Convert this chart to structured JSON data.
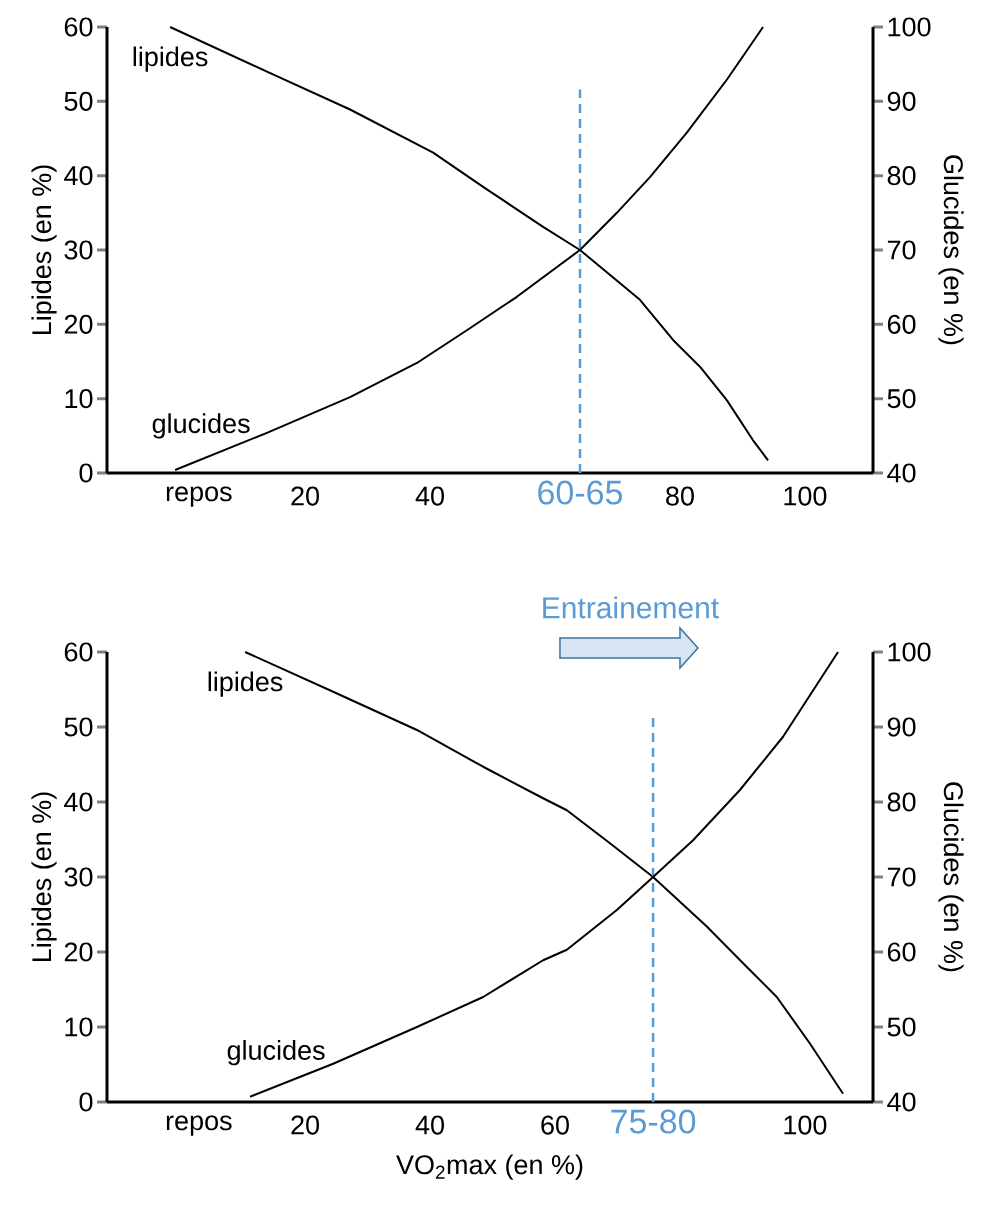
{
  "chart_data": [
    {
      "type": "line",
      "ylabel": "Lipides (en %)",
      "y2label": "Glucides (en %)",
      "xlim": [
        -11.7,
        110.9
      ],
      "xticks": [
        {
          "value": 3,
          "label": "repos"
        },
        20,
        40,
        80,
        100
      ],
      "ylim": [
        0,
        60
      ],
      "yticks": [
        0,
        10,
        20,
        30,
        40,
        50,
        60
      ],
      "y2lim": [
        40,
        100
      ],
      "y2ticks": [
        40,
        50,
        60,
        70,
        80,
        90,
        100
      ],
      "series": [
        {
          "name": "lipides",
          "color": "#000000",
          "x": [
            -1.6,
            13.9,
            27.2,
            40.5,
            48.5,
            58.1,
            64,
            73.6,
            78.9,
            83.2,
            87.5,
            91.7,
            94.1
          ],
          "values": [
            60,
            54,
            48.9,
            43.1,
            38.5,
            33.1,
            30,
            23.3,
            17.9,
            14.3,
            9.8,
            4.4,
            1.7
          ]
        },
        {
          "name": "glucides",
          "color": "#000000",
          "axis": "y2",
          "x": [
            -0.8,
            13.9,
            27.2,
            37.9,
            45.9,
            53.9,
            64,
            69.9,
            75.2,
            81.1,
            87.5,
            93.3
          ],
          "values": [
            40.4,
            45.4,
            50.2,
            54.8,
            59.2,
            63.7,
            70,
            75,
            79.8,
            85.8,
            92.9,
            100
          ]
        }
      ],
      "ref_lines": [
        {
          "axis": "x",
          "value": 64,
          "color": "#5b9bd5",
          "line_style": "dashed"
        }
      ],
      "annotations": [
        {
          "text": "60-65",
          "x": 64,
          "y": 0
        }
      ]
    },
    {
      "type": "line",
      "ylabel": "Lipides (en %)",
      "y2label": "Glucides (en %)",
      "xlabel": "VO$_{2}$max (en %)",
      "xlim": [
        -11.7,
        110.9
      ],
      "xticks": [
        {
          "value": 3,
          "label": "repos"
        },
        20,
        40,
        60,
        100
      ],
      "ylim": [
        0,
        60
      ],
      "yticks": [
        0,
        10,
        20,
        30,
        40,
        50,
        60
      ],
      "y2lim": [
        40,
        100
      ],
      "y2ticks": [
        40,
        50,
        60,
        70,
        80,
        90,
        100
      ],
      "series": [
        {
          "name": "lipides",
          "color": "#000000",
          "x": [
            10.4,
            24.5,
            37.9,
            48.5,
            58.1,
            61.9,
            68.8,
            75.7,
            84.3,
            90.7,
            95.5,
            100.8,
            106.1
          ],
          "values": [
            60,
            54.7,
            49.6,
            44.7,
            40.5,
            38.9,
            34.5,
            30,
            23.4,
            18,
            14,
            7.8,
            1.1
          ]
        },
        {
          "name": "glucides",
          "color": "#000000",
          "axis": "y2",
          "x": [
            11.2,
            24.5,
            37.9,
            48.5,
            58.1,
            61.9,
            69.9,
            75.7,
            82.1,
            89.6,
            96.5,
            105.3
          ],
          "values": [
            40.7,
            45.1,
            50,
            54,
            58.9,
            60.3,
            65.6,
            70,
            74.9,
            81.6,
            88.7,
            100
          ]
        }
      ],
      "ref_lines": [
        {
          "axis": "x",
          "value": 75.7,
          "color": "#5b9bd5",
          "line_style": "dashed"
        }
      ],
      "annotations": [
        {
          "text": "75-80",
          "x": 75.7,
          "y": 0
        },
        "Entrainement"
      ]
    }
  ]
}
